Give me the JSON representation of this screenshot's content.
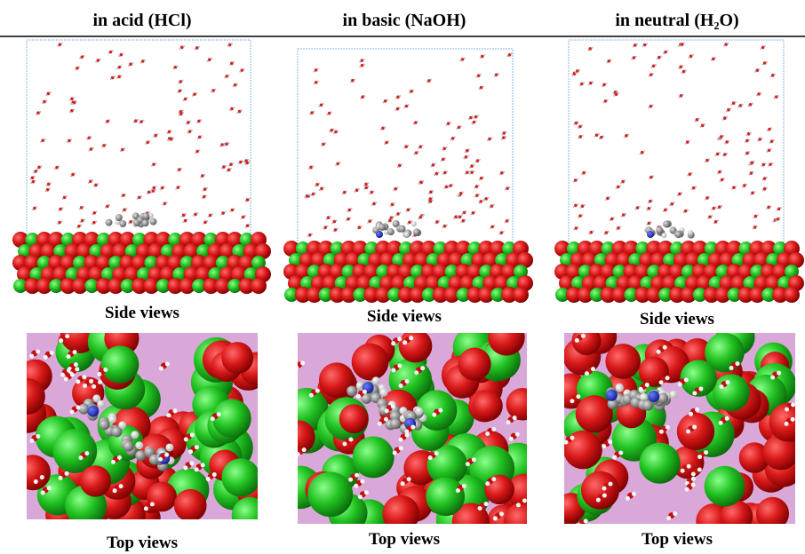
{
  "columns": [
    {
      "title": "in acid (HCl)",
      "side_label": "Side views",
      "top_label": "Top views"
    },
    {
      "title": "in basic (NaOH)",
      "side_label": "Side views",
      "top_label": "Top views"
    },
    {
      "title": "in neutral (H₂O)",
      "side_label": "Side views",
      "top_label": "Top views"
    }
  ]
}
